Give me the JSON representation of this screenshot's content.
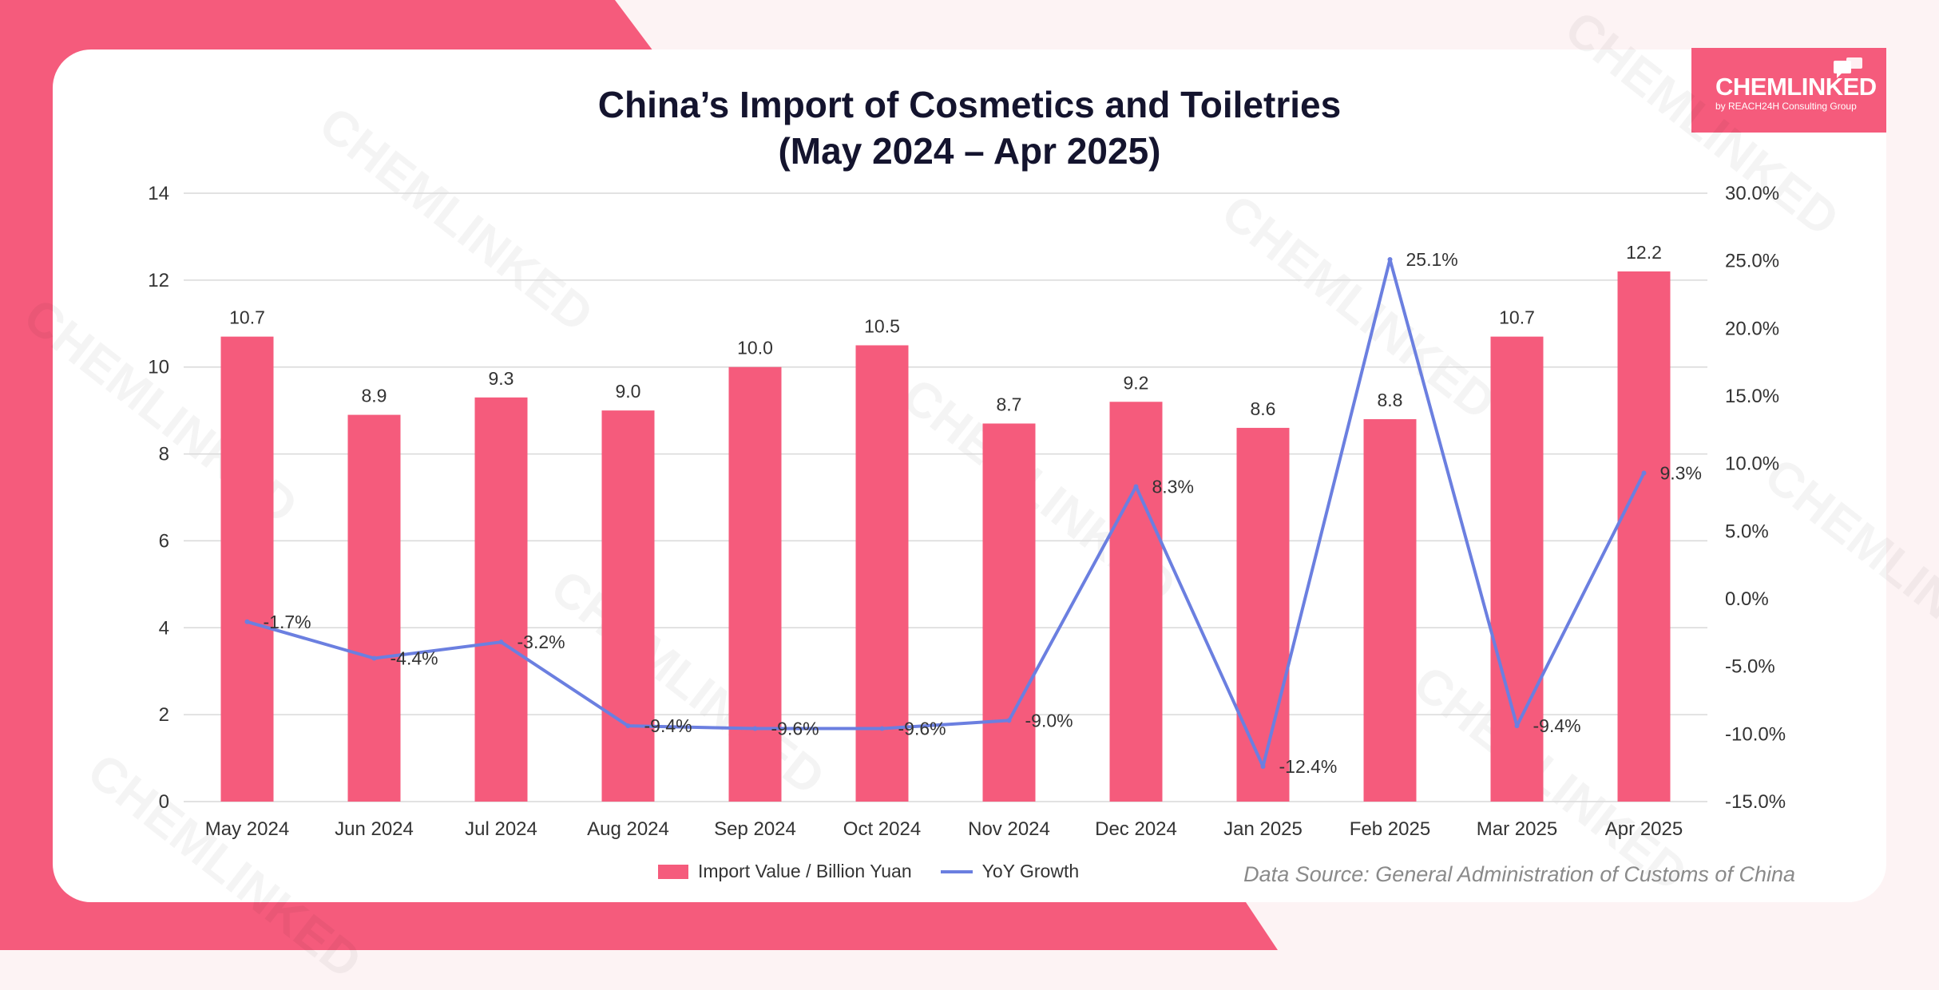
{
  "title_line1": "China’s Import of Cosmetics and Toiletries",
  "title_line2": "(May 2024 – Apr 2025)",
  "logo": {
    "word": "CHEMLINKED",
    "sub": "by REACH24H Consulting Group"
  },
  "watermark_text": "CHEMLINKED",
  "source": "Data Source: General Administration of Customs of China",
  "colors": {
    "brand": "#f55b7c",
    "bar": "#f55b7c",
    "line": "#6b7fe0",
    "title": "#14142e",
    "grid": "#d9d9d9"
  },
  "chart_data": {
    "type": "bar",
    "categories": [
      "May 2024",
      "Jun 2024",
      "Jul 2024",
      "Aug 2024",
      "Sep 2024",
      "Oct 2024",
      "Nov 2024",
      "Dec 2024",
      "Jan 2025",
      "Feb 2025",
      "Mar 2025",
      "Apr 2025"
    ],
    "series": [
      {
        "name": "Import Value / Billion Yuan",
        "type": "bar",
        "axis": "left",
        "values": [
          10.7,
          8.9,
          9.3,
          9.0,
          10.0,
          10.5,
          8.7,
          9.2,
          8.6,
          8.8,
          10.7,
          12.2
        ],
        "labels": [
          "10.7",
          "8.9",
          "9.3",
          "9.0",
          "10.0",
          "10.5",
          "8.7",
          "9.2",
          "8.6",
          "8.8",
          "10.7",
          "12.2"
        ]
      },
      {
        "name": "YoY Growth",
        "type": "line",
        "axis": "right",
        "values": [
          -1.7,
          -4.4,
          -3.2,
          -9.4,
          -9.6,
          -9.6,
          -9.0,
          8.3,
          -12.4,
          25.1,
          -9.4,
          9.3
        ],
        "labels": [
          "-1.7%",
          "-4.4%",
          "-3.2%",
          "-9.4%",
          "-9.6%",
          "-9.6%",
          "-9.0%",
          "8.3%",
          "-12.4%",
          "25.1%",
          "-9.4%",
          "9.3%"
        ]
      }
    ],
    "y_left": {
      "min": 0,
      "max": 14,
      "ticks": [
        "0",
        "2",
        "4",
        "6",
        "8",
        "10",
        "12",
        "14"
      ]
    },
    "y_right": {
      "min": -15,
      "max": 30,
      "ticks": [
        "-15.0%",
        "-10.0%",
        "-5.0%",
        "0.0%",
        "5.0%",
        "10.0%",
        "15.0%",
        "20.0%",
        "25.0%",
        "30.0%"
      ]
    },
    "grid": true,
    "legend_position": "bottom"
  }
}
